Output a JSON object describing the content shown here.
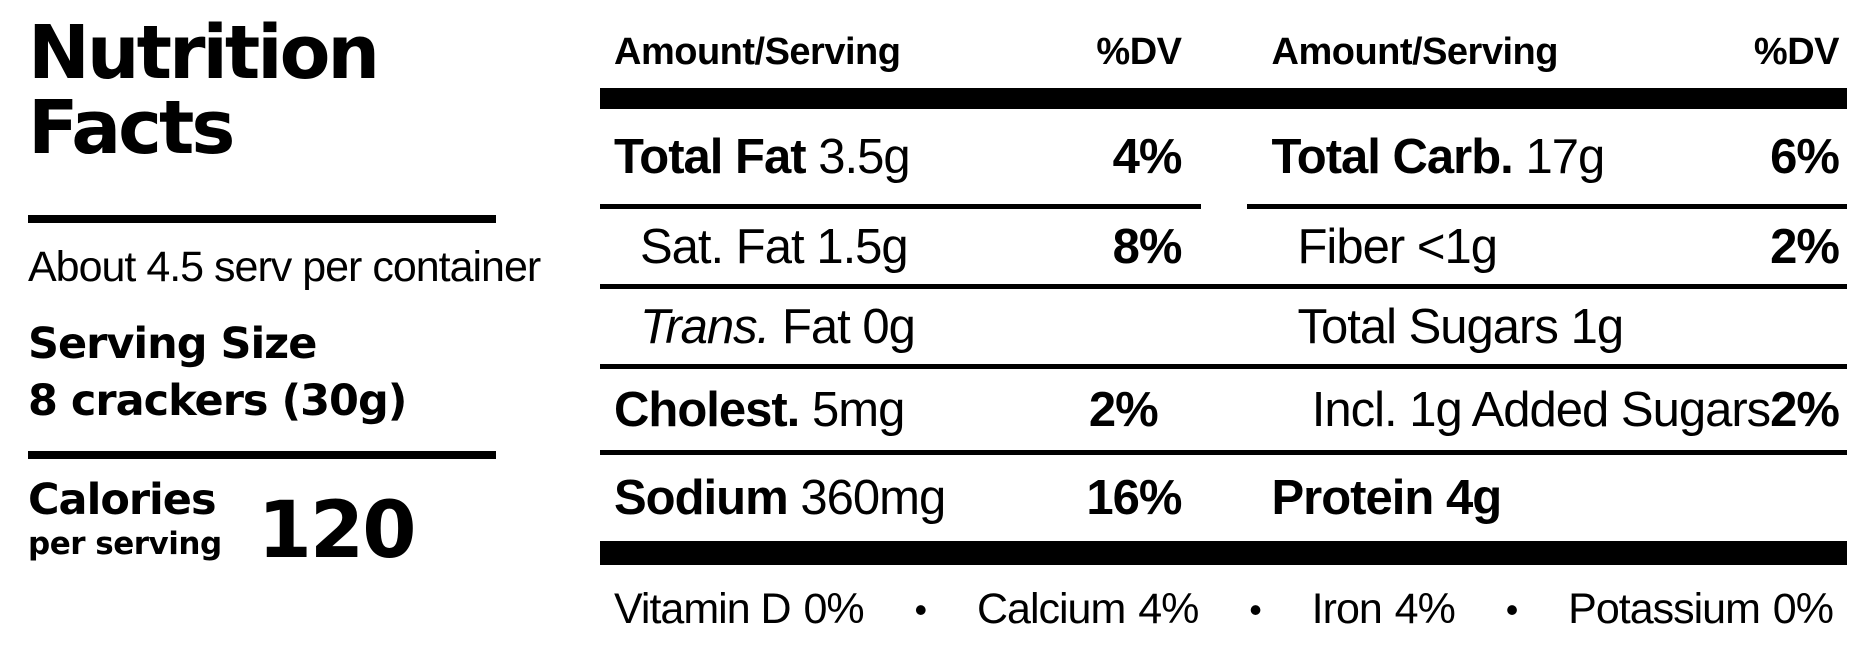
{
  "label": {
    "title": "Nutrition Facts",
    "servings_per_container": "About 4.5 serv per container",
    "serving_size_label": "Serving Size",
    "serving_size_value": "8 crackers (30g)",
    "calories_label": "Calories",
    "calories_sub_label": "per serving",
    "calories_value": "120"
  },
  "table": {
    "columns": [
      {
        "header_amount": "Amount/Serving",
        "header_dv": "%DV",
        "rows": [
          {
            "name": "Total Fat",
            "amount": "3.5g",
            "dv": "4%"
          },
          {
            "name": "Sat. Fat",
            "amount": "1.5g",
            "dv": "8%"
          },
          {
            "name": "Trans.",
            "amount": "Fat 0g",
            "dv": ""
          },
          {
            "name": "Cholest.",
            "amount": "5mg",
            "dv": "2%"
          },
          {
            "name": "Sodium",
            "amount": "360mg",
            "dv": "16%"
          }
        ]
      },
      {
        "header_amount": "Amount/Serving",
        "header_dv": "%DV",
        "rows": [
          {
            "name": "Total Carb.",
            "amount": "17g",
            "dv": "6%"
          },
          {
            "name": "Fiber",
            "amount": "<1g",
            "dv": "2%"
          },
          {
            "name": "Total Sugars",
            "amount": "1g",
            "dv": ""
          },
          {
            "name": "Incl. 1g Added Sugars",
            "amount": "",
            "dv": "2%"
          },
          {
            "name": "Protein",
            "amount": "4g",
            "dv": ""
          }
        ]
      }
    ],
    "micronutrients": [
      {
        "name": "Vitamin D",
        "value": "0%"
      },
      {
        "name": "Calcium",
        "value": "4%"
      },
      {
        "name": "Iron",
        "value": "4%"
      },
      {
        "name": "Potassium",
        "value": "0%"
      }
    ],
    "separator": "•"
  },
  "colors": {
    "text": "#000000",
    "background": "#ffffff"
  }
}
